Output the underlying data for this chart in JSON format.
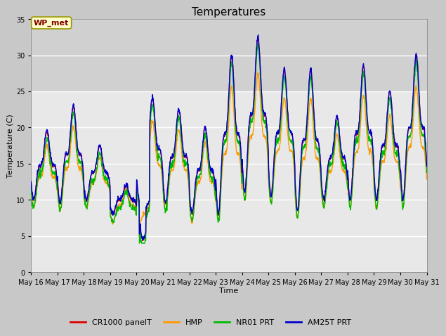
{
  "title": "Temperatures",
  "xlabel": "Time",
  "ylabel": "Temperature (C)",
  "ylim": [
    0,
    35
  ],
  "background_color": "#c8c8c8",
  "plot_bg_color": "#e8e8e8",
  "plot_bg_color2": "#d0d0d0",
  "annotation_text": "WP_met",
  "annotation_color": "#800000",
  "annotation_bg": "#ffffcc",
  "annotation_edge": "#999900",
  "series_colors": [
    "#dd0000",
    "#ff9900",
    "#00bb00",
    "#0000cc"
  ],
  "series_labels": [
    "CR1000 panelT",
    "HMP",
    "NR01 PRT",
    "AM25T PRT"
  ],
  "xtick_labels": [
    "May 16",
    "May 17",
    "May 18",
    "May 19",
    "May 20",
    "May 21",
    "May 22",
    "May 23",
    "May 24",
    "May 25",
    "May 26",
    "May 27",
    "May 28",
    "May 29",
    "May 30",
    "May 31"
  ],
  "ytick_values": [
    0,
    5,
    10,
    15,
    20,
    25,
    30,
    35
  ],
  "grid_color": "#ffffff",
  "line_width": 1.0,
  "title_fontsize": 11,
  "label_fontsize": 8,
  "tick_fontsize": 7,
  "legend_fontsize": 8
}
